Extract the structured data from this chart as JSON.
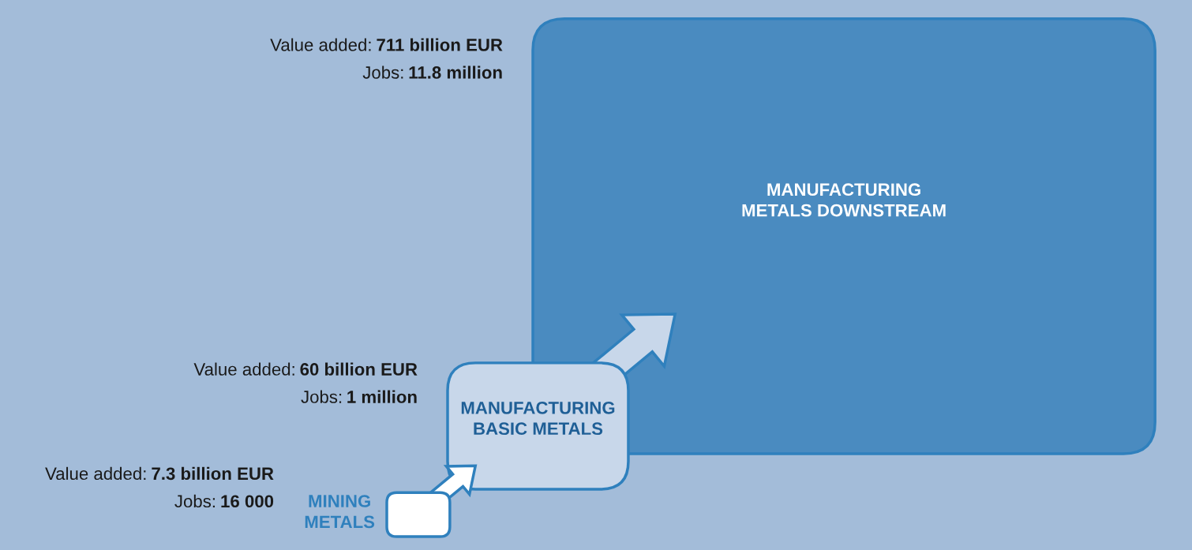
{
  "chart_data": {
    "type": "other",
    "categories": [
      "MINING\nMETALS",
      "MANUFACTURING\nBASIC METALS",
      "MANUFACTURING\nMETALS DOWNSTREAM"
    ],
    "series": [
      {
        "name": "Value added:",
        "values": [
          7.3,
          60,
          711
        ],
        "value_labels": [
          "7.3 billion EUR",
          "60 billion EUR",
          "711 billion EUR"
        ]
      },
      {
        "name": "Jobs:",
        "values": [
          null,
          null,
          null
        ],
        "value_labels": [
          "16 000",
          "1 million",
          "11.8 million"
        ]
      }
    ],
    "colors": [
      "#ffffff",
      "#c8d7ea",
      "#4a8bc0"
    ]
  }
}
